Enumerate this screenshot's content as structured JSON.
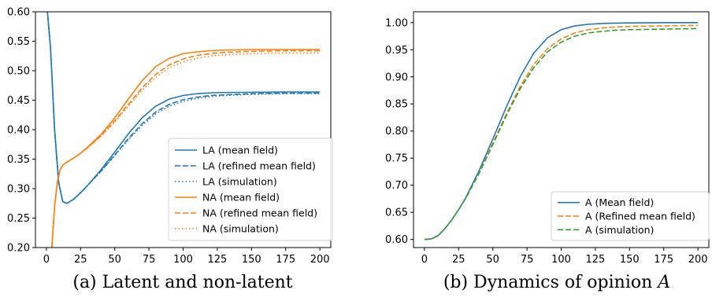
{
  "chart_data": [
    {
      "type": "line",
      "caption": "(a) Latent and non-latent",
      "xlim": [
        -8,
        208
      ],
      "ylim": [
        0.2,
        0.6
      ],
      "xticks": [
        0,
        25,
        50,
        75,
        100,
        125,
        150,
        175,
        200
      ],
      "yticks": [
        0.2,
        0.25,
        0.3,
        0.35,
        0.4,
        0.45,
        0.5,
        0.55,
        0.6
      ],
      "legend_position": "lower-right",
      "series": [
        {
          "name": "LA (mean field)",
          "color": "#1f77b4",
          "dash": "solid",
          "x": [
            0,
            3,
            6,
            9,
            12,
            15,
            20,
            25,
            30,
            40,
            50,
            60,
            70,
            80,
            90,
            100,
            110,
            120,
            130,
            150,
            175,
            200
          ],
          "y": [
            0.62,
            0.54,
            0.4,
            0.31,
            0.278,
            0.275,
            0.282,
            0.293,
            0.305,
            0.332,
            0.362,
            0.393,
            0.42,
            0.44,
            0.452,
            0.458,
            0.461,
            0.4625,
            0.463,
            0.4635,
            0.464,
            0.464
          ]
        },
        {
          "name": "LA (refined mean field)",
          "color": "#1f77b4",
          "dash": "dashed",
          "x": [
            0,
            3,
            6,
            9,
            12,
            15,
            20,
            25,
            30,
            40,
            50,
            60,
            70,
            80,
            90,
            100,
            110,
            120,
            130,
            150,
            175,
            200
          ],
          "y": [
            0.62,
            0.54,
            0.4,
            0.31,
            0.278,
            0.275,
            0.282,
            0.293,
            0.305,
            0.33,
            0.357,
            0.385,
            0.41,
            0.43,
            0.443,
            0.451,
            0.455,
            0.458,
            0.459,
            0.461,
            0.462,
            0.462
          ]
        },
        {
          "name": "LA (simulation)",
          "color": "#1f77b4",
          "dash": "dotted",
          "x": [
            0,
            3,
            6,
            9,
            12,
            15,
            20,
            25,
            30,
            40,
            50,
            60,
            70,
            80,
            90,
            100,
            110,
            120,
            130,
            150,
            175,
            200
          ],
          "y": [
            0.62,
            0.54,
            0.4,
            0.31,
            0.278,
            0.275,
            0.282,
            0.293,
            0.305,
            0.329,
            0.356,
            0.383,
            0.407,
            0.427,
            0.44,
            0.448,
            0.453,
            0.456,
            0.458,
            0.46,
            0.461,
            0.461
          ]
        },
        {
          "name": "NA (mean field)",
          "color": "#ff7f0e",
          "dash": "solid",
          "x": [
            4,
            6,
            8,
            10,
            12,
            15,
            20,
            25,
            30,
            40,
            50,
            60,
            70,
            80,
            90,
            100,
            110,
            120,
            130,
            150,
            175,
            200
          ],
          "y": [
            0.2,
            0.27,
            0.31,
            0.332,
            0.34,
            0.345,
            0.352,
            0.36,
            0.37,
            0.392,
            0.42,
            0.452,
            0.483,
            0.507,
            0.521,
            0.529,
            0.532,
            0.534,
            0.535,
            0.536,
            0.536,
            0.536
          ]
        },
        {
          "name": "NA (refined mean field)",
          "color": "#ff7f0e",
          "dash": "dashed",
          "x": [
            4,
            6,
            8,
            10,
            12,
            15,
            20,
            25,
            30,
            40,
            50,
            60,
            70,
            80,
            90,
            100,
            110,
            120,
            130,
            150,
            175,
            200
          ],
          "y": [
            0.2,
            0.27,
            0.31,
            0.332,
            0.34,
            0.345,
            0.352,
            0.36,
            0.369,
            0.39,
            0.415,
            0.443,
            0.471,
            0.494,
            0.51,
            0.52,
            0.526,
            0.529,
            0.531,
            0.533,
            0.534,
            0.534
          ]
        },
        {
          "name": "NA (simulation)",
          "color": "#ff7f0e",
          "dash": "dotted",
          "x": [
            4,
            6,
            8,
            10,
            12,
            15,
            20,
            25,
            30,
            40,
            50,
            60,
            70,
            80,
            90,
            100,
            110,
            120,
            130,
            150,
            175,
            200
          ],
          "y": [
            0.2,
            0.27,
            0.31,
            0.332,
            0.34,
            0.345,
            0.352,
            0.36,
            0.369,
            0.389,
            0.413,
            0.44,
            0.467,
            0.489,
            0.505,
            0.515,
            0.521,
            0.525,
            0.527,
            0.529,
            0.53,
            0.53
          ]
        }
      ]
    },
    {
      "type": "line",
      "caption": "(b) Dynamics of opinion A",
      "xlim": [
        -8,
        208
      ],
      "ylim": [
        0.585,
        1.02
      ],
      "xticks": [
        0,
        25,
        50,
        75,
        100,
        125,
        150,
        175,
        200
      ],
      "yticks": [
        0.6,
        0.65,
        0.7,
        0.75,
        0.8,
        0.85,
        0.9,
        0.95,
        1.0
      ],
      "legend_position": "lower-right",
      "series": [
        {
          "name": "A (Mean field)",
          "color": "#1f77b4",
          "dash": "solid",
          "x": [
            0,
            5,
            10,
            15,
            20,
            25,
            30,
            40,
            50,
            60,
            70,
            80,
            90,
            100,
            110,
            120,
            130,
            140,
            150,
            175,
            200
          ],
          "y": [
            0.6,
            0.601,
            0.607,
            0.62,
            0.636,
            0.655,
            0.676,
            0.727,
            0.785,
            0.845,
            0.9,
            0.944,
            0.972,
            0.987,
            0.994,
            0.997,
            0.9985,
            0.999,
            0.9995,
            1.0,
            1.0
          ]
        },
        {
          "name": "A (Refined mean field)",
          "color": "#ff7f0e",
          "dash": "dashed",
          "x": [
            0,
            5,
            10,
            15,
            20,
            25,
            30,
            40,
            50,
            60,
            70,
            80,
            90,
            100,
            110,
            120,
            130,
            140,
            150,
            175,
            200
          ],
          "y": [
            0.6,
            0.601,
            0.607,
            0.62,
            0.636,
            0.655,
            0.675,
            0.723,
            0.777,
            0.832,
            0.882,
            0.923,
            0.952,
            0.97,
            0.981,
            0.987,
            0.99,
            0.992,
            0.993,
            0.994,
            0.995
          ]
        },
        {
          "name": "A (simulation)",
          "color": "#2ca02c",
          "dash": "dashed",
          "x": [
            0,
            5,
            10,
            15,
            20,
            25,
            30,
            40,
            50,
            60,
            70,
            80,
            90,
            100,
            110,
            120,
            130,
            140,
            150,
            175,
            200
          ],
          "y": [
            0.6,
            0.601,
            0.607,
            0.62,
            0.636,
            0.655,
            0.675,
            0.722,
            0.775,
            0.829,
            0.878,
            0.917,
            0.946,
            0.964,
            0.975,
            0.981,
            0.984,
            0.986,
            0.987,
            0.988,
            0.989
          ]
        }
      ]
    }
  ]
}
